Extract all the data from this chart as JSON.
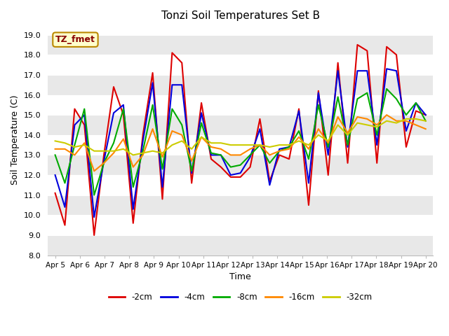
{
  "title": "Tonzi Soil Temperatures Set B",
  "xlabel": "Time",
  "ylabel": "Soil Temperature (C)",
  "ylim": [
    8.0,
    19.5
  ],
  "yticks": [
    8.0,
    9.0,
    10.0,
    11.0,
    12.0,
    13.0,
    14.0,
    15.0,
    16.0,
    17.0,
    18.0,
    19.0
  ],
  "fig_bg": "#ffffff",
  "plot_bg_light": "#ffffff",
  "plot_bg_dark": "#e8e8e8",
  "annotation_text": "TZ_fmet",
  "annotation_fg": "#880000",
  "annotation_bg": "#ffffcc",
  "annotation_border": "#bb8800",
  "x_tick_labels": [
    "Apr 5",
    "Apr 6",
    "Apr 7",
    "Apr 8",
    "Apr 9",
    "Apr 10",
    "Apr 11",
    "Apr 12",
    "Apr 13",
    "Apr 14",
    "Apr 15",
    "Apr 16",
    "Apr 17",
    "Apr 18",
    "Apr 19",
    "Apr 20"
  ],
  "series": [
    {
      "key": "neg2cm",
      "label": "-2cm",
      "color": "#dd0000",
      "linewidth": 1.5,
      "data": [
        11.1,
        9.5,
        15.3,
        14.5,
        9.0,
        13.0,
        16.4,
        15.0,
        9.6,
        14.0,
        17.1,
        10.8,
        18.1,
        17.6,
        11.6,
        15.6,
        12.8,
        12.4,
        11.9,
        11.9,
        12.4,
        14.8,
        11.7,
        13.0,
        12.8,
        15.3,
        10.5,
        16.2,
        12.0,
        17.6,
        12.6,
        18.5,
        18.2,
        12.6,
        18.4,
        18.0,
        13.4,
        15.2,
        15.0
      ]
    },
    {
      "key": "neg4cm",
      "label": "-4cm",
      "color": "#0000dd",
      "linewidth": 1.5,
      "data": [
        12.0,
        10.4,
        14.5,
        15.0,
        9.9,
        12.7,
        15.1,
        15.5,
        10.3,
        13.7,
        16.6,
        11.4,
        16.5,
        16.5,
        12.1,
        15.1,
        13.0,
        13.0,
        12.0,
        12.1,
        12.9,
        14.3,
        11.5,
        13.3,
        13.4,
        15.2,
        11.6,
        16.1,
        13.0,
        17.2,
        13.4,
        17.2,
        17.2,
        13.5,
        17.3,
        17.2,
        14.2,
        15.6,
        15.0
      ]
    },
    {
      "key": "neg8cm",
      "label": "-8cm",
      "color": "#00aa00",
      "linewidth": 1.5,
      "data": [
        13.0,
        11.6,
        13.5,
        15.3,
        11.0,
        12.6,
        13.6,
        15.3,
        11.4,
        13.2,
        15.5,
        12.3,
        15.3,
        14.5,
        12.2,
        14.6,
        13.1,
        13.0,
        12.4,
        12.5,
        13.0,
        13.5,
        12.6,
        13.2,
        13.4,
        14.2,
        12.8,
        15.5,
        13.4,
        15.9,
        13.5,
        15.8,
        16.1,
        14.0,
        16.3,
        15.8,
        15.0,
        15.6,
        14.7
      ]
    },
    {
      "key": "neg16cm",
      "label": "-16cm",
      "color": "#ff8800",
      "linewidth": 1.5,
      "data": [
        13.3,
        13.3,
        13.0,
        13.6,
        12.2,
        12.6,
        13.1,
        13.8,
        12.4,
        13.0,
        14.3,
        12.9,
        14.2,
        14.0,
        12.7,
        13.9,
        13.4,
        13.3,
        13.0,
        13.0,
        13.3,
        13.5,
        13.0,
        13.2,
        13.3,
        13.9,
        13.3,
        14.3,
        13.6,
        14.9,
        14.1,
        14.9,
        14.8,
        14.5,
        15.0,
        14.7,
        14.7,
        14.5,
        14.3
      ]
    },
    {
      "key": "neg32cm",
      "label": "-32cm",
      "color": "#cccc00",
      "linewidth": 1.5,
      "data": [
        13.7,
        13.6,
        13.4,
        13.5,
        13.2,
        13.2,
        13.2,
        13.3,
        13.0,
        13.1,
        13.2,
        13.1,
        13.5,
        13.7,
        13.3,
        13.9,
        13.6,
        13.6,
        13.5,
        13.5,
        13.5,
        13.5,
        13.4,
        13.5,
        13.5,
        13.7,
        13.5,
        14.0,
        13.7,
        14.5,
        14.0,
        14.6,
        14.5,
        14.4,
        14.7,
        14.6,
        14.8,
        14.8,
        14.7
      ]
    }
  ]
}
